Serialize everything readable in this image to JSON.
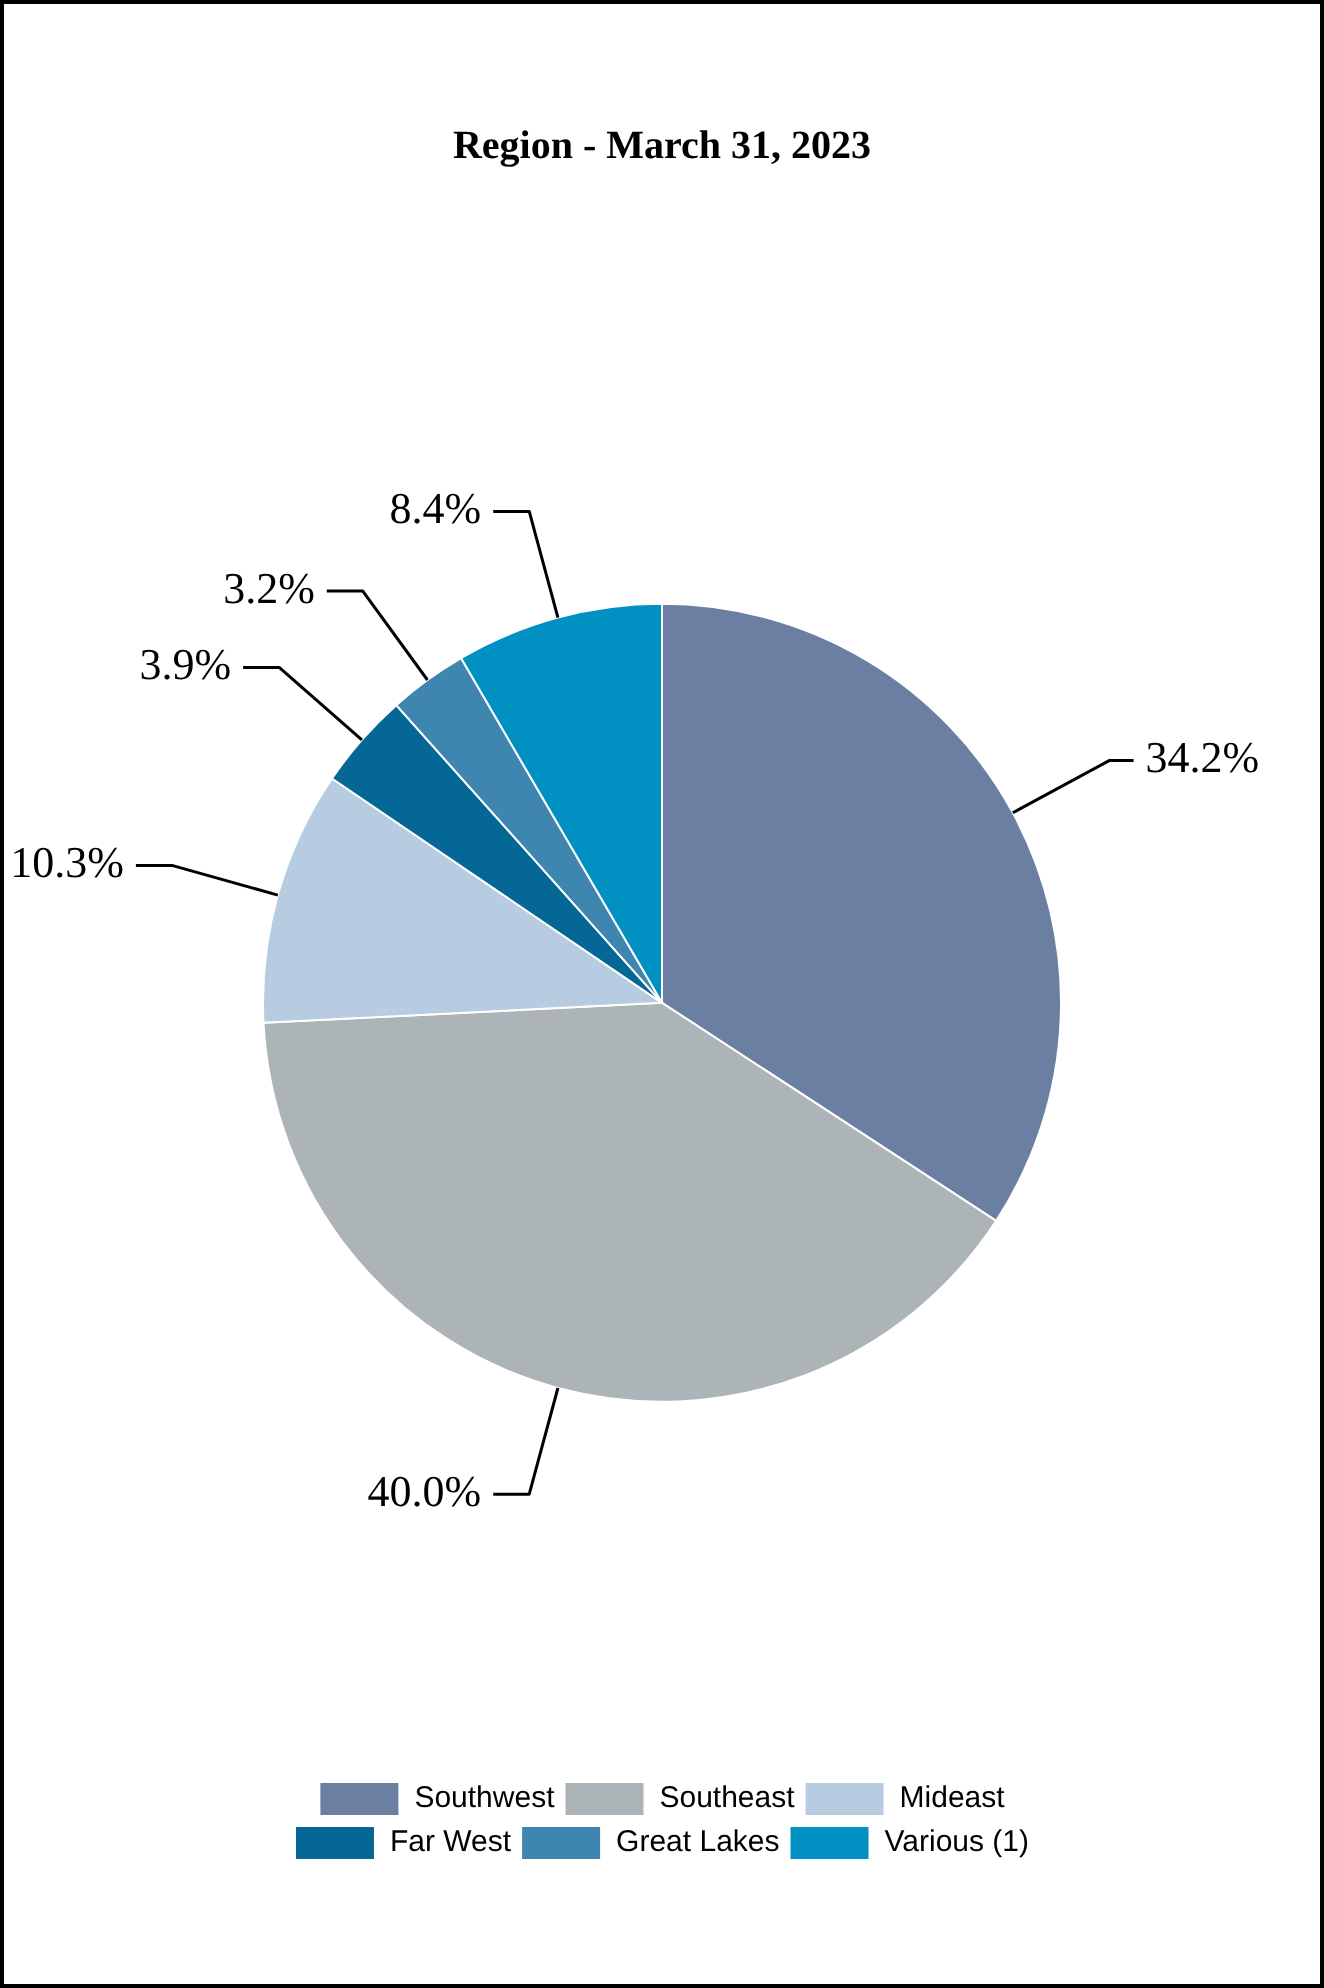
{
  "chart_data": {
    "type": "pie",
    "title": "Region - March 31, 2023",
    "categories": [
      "Southwest",
      "Southeast",
      "Mideast",
      "Far West",
      "Great Lakes",
      "Various (1)"
    ],
    "values": [
      34.2,
      40.0,
      10.3,
      3.9,
      3.2,
      8.4
    ],
    "value_labels": [
      "34.2%",
      "40.0%",
      "10.3%",
      "3.9%",
      "3.2%",
      "8.4%"
    ],
    "colors": [
      "#6b7fa3",
      "#adb4b8",
      "#b7cce0",
      "#046796",
      "#3e86b0",
      "#0091c2"
    ],
    "legend": "bottom"
  }
}
